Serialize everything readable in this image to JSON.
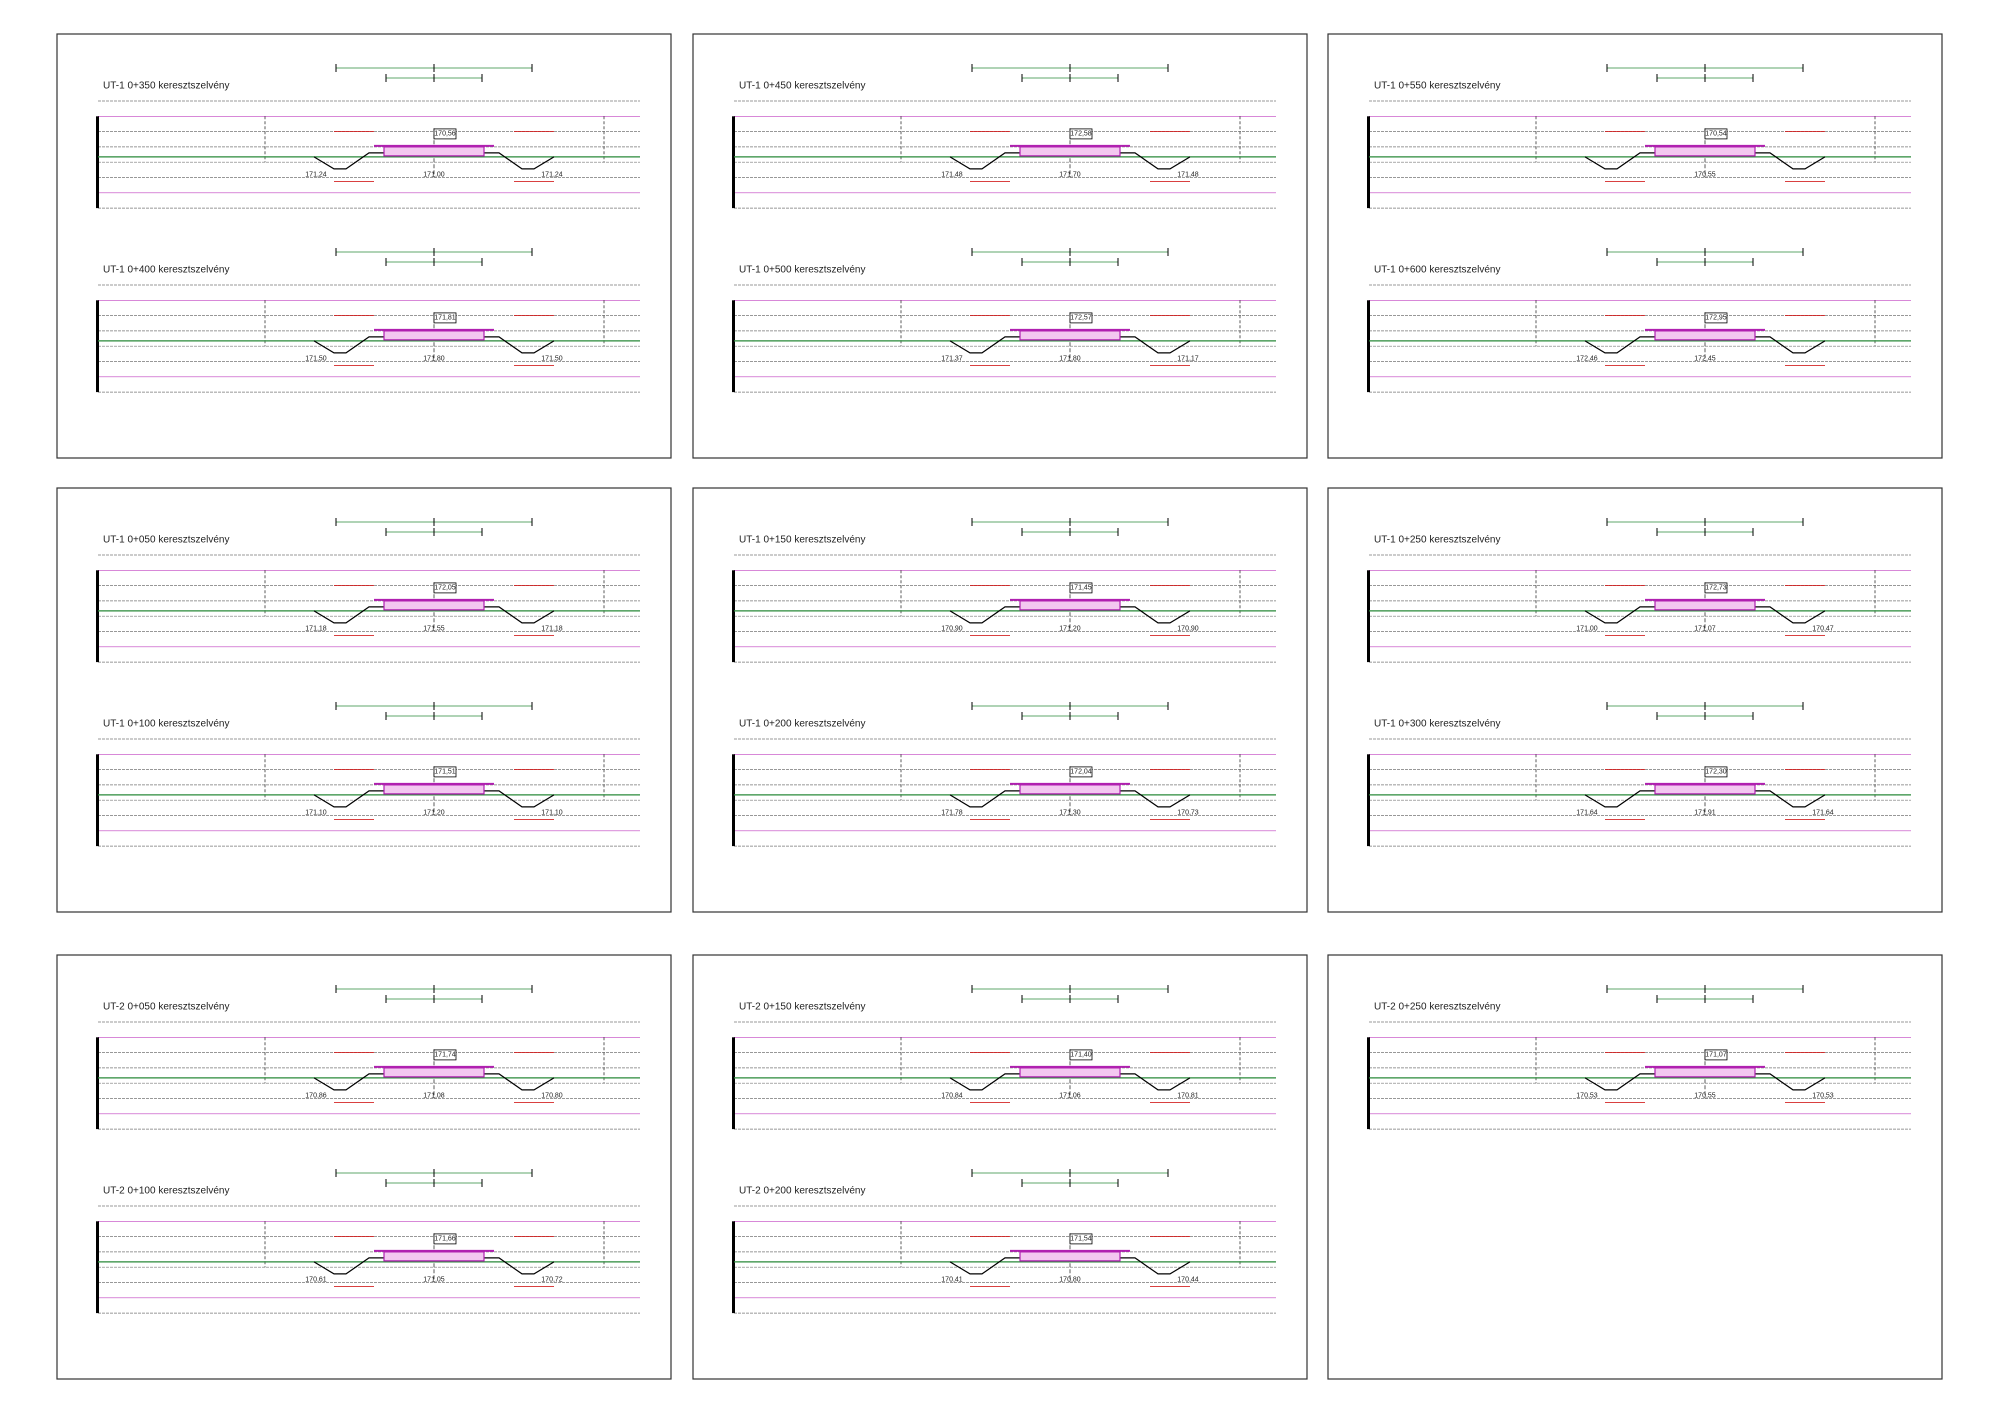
{
  "panels": [
    {
      "sections": [
        {
          "title": "UT-1 0+350 keresztszelvény",
          "box": "170,56",
          "left": "171,24",
          "center": "171,00",
          "right": "171,24"
        },
        {
          "title": "UT-1 0+400 keresztszelvény",
          "box": "171,81",
          "left": "171,50",
          "center": "171,80",
          "right": "171,50"
        }
      ]
    },
    {
      "sections": [
        {
          "title": "UT-1 0+450 keresztszelvény",
          "box": "172,58",
          "left": "171,48",
          "center": "171,70",
          "right": "171,48"
        },
        {
          "title": "UT-1 0+500 keresztszelvény",
          "box": "172,57",
          "left": "171,37",
          "center": "171,80",
          "right": "171,17"
        }
      ]
    },
    {
      "sections": [
        {
          "title": "UT-1 0+550 keresztszelvény",
          "box": "170,54",
          "center": "170,55"
        },
        {
          "title": "UT-1 0+600 keresztszelvény",
          "box": "172,95",
          "left": "172,46",
          "center": "172,45"
        }
      ]
    },
    {
      "sections": [
        {
          "title": "UT-1 0+050 keresztszelvény",
          "box": "172,05",
          "left": "171,18",
          "center": "171,55",
          "right": "171,18"
        },
        {
          "title": "UT-1 0+100 keresztszelvény",
          "box": "171,51",
          "left": "171,10",
          "center": "171,20",
          "right": "171,10"
        }
      ]
    },
    {
      "sections": [
        {
          "title": "UT-1 0+150 keresztszelvény",
          "box": "171,45",
          "left": "170,90",
          "center": "171,20",
          "right": "170,90"
        },
        {
          "title": "UT-1 0+200 keresztszelvény",
          "box": "172,04",
          "left": "171,78",
          "center": "171,30",
          "right": "170,73"
        }
      ]
    },
    {
      "sections": [
        {
          "title": "UT-1 0+250 keresztszelvény",
          "box": "172,73",
          "left": "171,00",
          "center": "171,07",
          "right": "170,47"
        },
        {
          "title": "UT-1 0+300 keresztszelvény",
          "box": "172,30",
          "left": "171,64",
          "center": "171,91",
          "right": "171,64"
        }
      ]
    },
    {
      "sections": [
        {
          "title": "UT-2 0+050 keresztszelvény",
          "box": "171,74",
          "left": "170,86",
          "center": "171,08",
          "right": "170,80"
        },
        {
          "title": "UT-2 0+100 keresztszelvény",
          "box": "171,66",
          "left": "170,61",
          "center": "171,05",
          "right": "170,72"
        }
      ]
    },
    {
      "sections": [
        {
          "title": "UT-2 0+150 keresztszelvény",
          "box": "171,40",
          "left": "170,84",
          "center": "171,06",
          "right": "170,81"
        },
        {
          "title": "UT-2 0+200 keresztszelvény",
          "box": "171,54",
          "left": "170,41",
          "center": "170,80",
          "right": "170,44"
        }
      ]
    },
    {
      "sections": [
        {
          "title": "UT-2 0+250 keresztszelvény",
          "box": "171,07",
          "left": "170,53",
          "center": "170,55",
          "right": "170,53"
        }
      ]
    }
  ]
}
